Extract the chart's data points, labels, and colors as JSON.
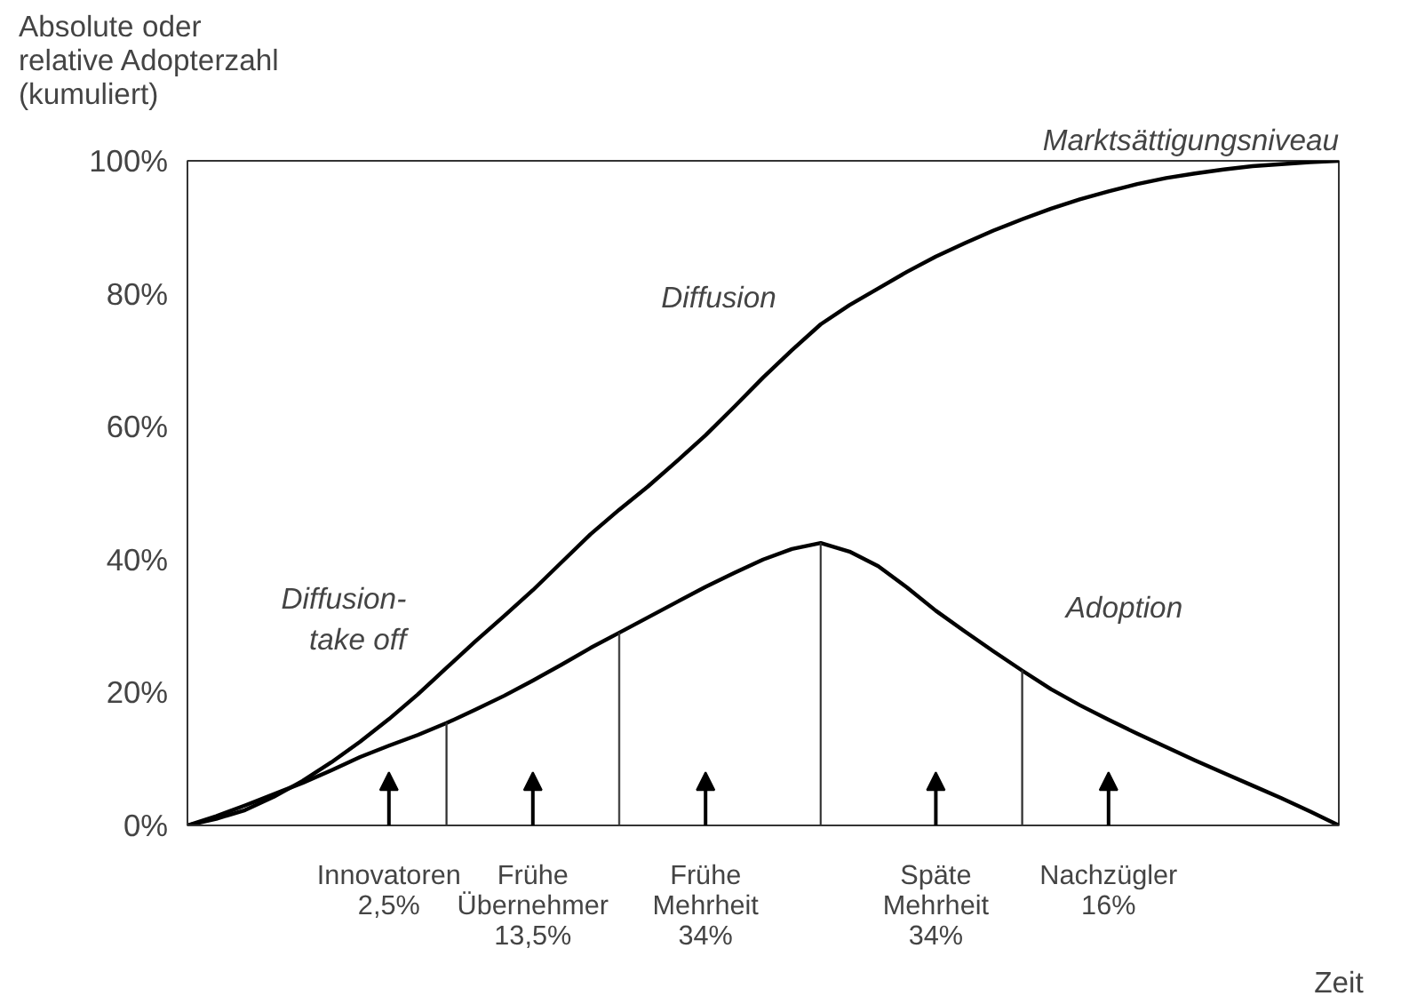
{
  "chart_data": {
    "type": "line",
    "ylabel": "Absolute oder\nrelative Adopterzahl\n(kumuliert)",
    "xlabel": "Zeit",
    "categories": [
      null,
      null,
      null,
      null,
      null,
      null,
      null,
      "Innovatoren\n2,5%",
      null,
      null,
      null,
      null,
      "Frühe\nÜbernehmer\n13,5%",
      null,
      null,
      null,
      null,
      null,
      "Frühe\nMehrheit\n34%",
      null,
      null,
      null,
      null,
      null,
      null,
      null,
      "Späte\nMehrheit\n34%",
      null,
      null,
      null,
      null,
      null,
      "Nachzügler\n16%",
      null,
      null,
      null,
      null,
      null,
      null,
      null,
      null
    ],
    "series": [
      {
        "name": "Diffusion",
        "color": "#000000",
        "values": [
          0,
          1,
          2.3,
          4.3,
          6.7,
          9.5,
          12.6,
          16,
          19.7,
          23.7,
          27.7,
          31.5,
          35.4,
          39.6,
          43.8,
          47.5,
          51,
          54.8,
          58.7,
          63,
          67.4,
          71.5,
          75.4,
          78.3,
          80.8,
          83.3,
          85.6,
          87.6,
          89.5,
          91.2,
          92.8,
          94.2,
          95.4,
          96.5,
          97.4,
          98.1,
          98.7,
          99.2,
          99.5,
          99.8,
          100
        ]
      },
      {
        "name": "Adoption",
        "color": "#000000",
        "values": [
          0,
          1.4,
          3,
          4.7,
          6.4,
          8.3,
          10.3,
          12,
          13.6,
          15.4,
          17.4,
          19.5,
          21.8,
          24.2,
          26.7,
          29,
          31.3,
          33.6,
          35.9,
          38,
          40,
          41.6,
          42.5,
          41.2,
          39,
          35.8,
          32.3,
          29.2,
          26.2,
          23.3,
          20.5,
          18.1,
          15.9,
          13.8,
          11.8,
          9.8,
          7.9,
          6,
          4.1,
          2.1,
          0
        ]
      },
      {
        "type": "bar",
        "color": "#333333",
        "values": [
          null,
          null,
          null,
          null,
          null,
          null,
          null,
          null,
          null,
          15.4,
          null,
          null,
          null,
          null,
          null,
          29,
          null,
          null,
          null,
          null,
          null,
          null,
          42.5,
          null,
          null,
          null,
          null,
          null,
          null,
          23.3,
          null,
          null,
          null,
          null,
          null,
          null,
          null,
          null,
          null,
          null,
          null
        ]
      }
    ],
    "ylim": [
      0,
      100
    ],
    "yticks": [
      {
        "value": 0,
        "label": "0%"
      },
      {
        "value": 20,
        "label": "20%"
      },
      {
        "value": 40,
        "label": "40%"
      },
      {
        "value": 60,
        "label": "60%"
      },
      {
        "value": 80,
        "label": "80%"
      },
      {
        "value": 100,
        "label": "100%"
      }
    ],
    "grid": false,
    "legend": false,
    "line_style": "solid",
    "annotations": [
      "Marktsättigungsniveau",
      "Diffusion-\ntake off"
    ]
  }
}
